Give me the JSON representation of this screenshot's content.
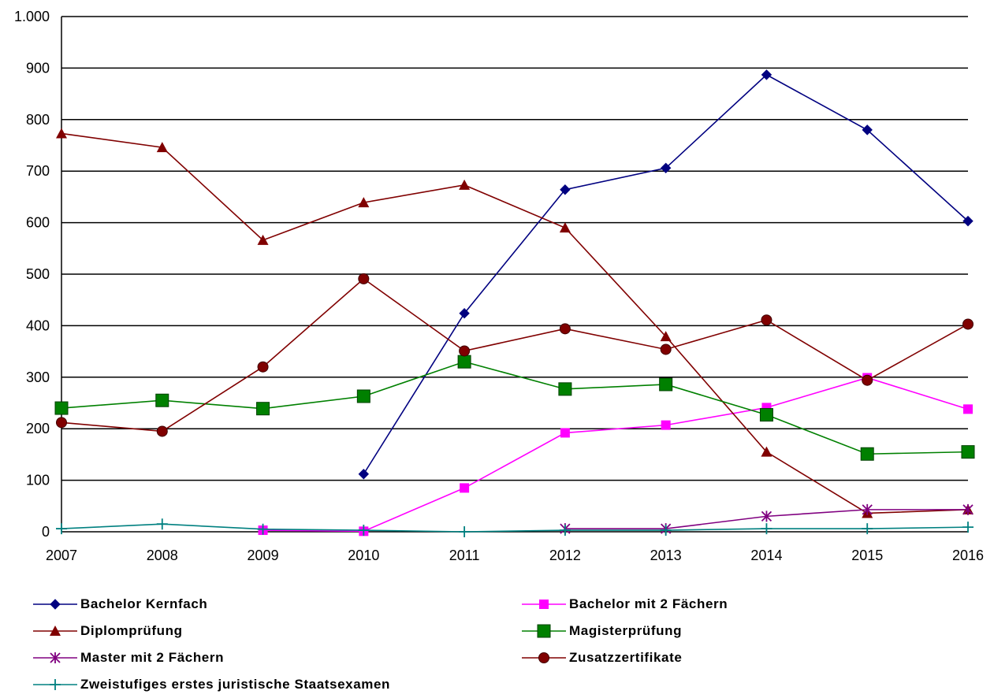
{
  "chart_data": {
    "type": "line",
    "title": "",
    "xlabel": "",
    "ylabel": "",
    "categories": [
      "2007",
      "2008",
      "2009",
      "2010",
      "2011",
      "2012",
      "2013",
      "2014",
      "2015",
      "2016"
    ],
    "ylim": [
      0,
      1000
    ],
    "yticks": [
      0,
      100,
      200,
      300,
      400,
      500,
      600,
      700,
      800,
      900,
      1000
    ],
    "ytick_labels": [
      "0",
      "100",
      "200",
      "300",
      "400",
      "500",
      "600",
      "700",
      "800",
      "900",
      "1.000"
    ],
    "grid": "horizontal",
    "legend_position": "bottom",
    "series": [
      {
        "name": "Bachelor Kernfach",
        "color": "#000080",
        "marker": "diamond",
        "values": [
          null,
          null,
          null,
          112,
          424,
          664,
          706,
          887,
          780,
          603
        ]
      },
      {
        "name": "Bachelor mit 2 Fächern",
        "color": "#ff00ff",
        "marker": "square",
        "values": [
          null,
          null,
          3,
          1,
          85,
          192,
          207,
          241,
          299,
          238
        ]
      },
      {
        "name": "Diplomprüfung",
        "color": "#800000",
        "marker": "triangle",
        "values": [
          773,
          746,
          566,
          639,
          673,
          590,
          379,
          155,
          36,
          43
        ]
      },
      {
        "name": "Magisterprüfung",
        "color": "#008000",
        "marker": "bigsquare",
        "values": [
          240,
          255,
          239,
          263,
          330,
          277,
          286,
          227,
          151,
          155
        ]
      },
      {
        "name": "Master mit 2 Fächern",
        "color": "#800080",
        "marker": "star",
        "values": [
          null,
          null,
          null,
          null,
          null,
          6,
          6,
          30,
          43,
          43
        ]
      },
      {
        "name": "Zusatzzertifikate",
        "color": "#800000",
        "marker": "circle",
        "values": [
          212,
          195,
          320,
          491,
          351,
          394,
          354,
          411,
          294,
          403
        ]
      },
      {
        "name": "Zweistufiges erstes juristische Staatsexamen",
        "color": "#008080",
        "marker": "plus",
        "values": [
          6,
          15,
          5,
          3,
          0,
          3,
          3,
          6,
          6,
          9
        ]
      }
    ]
  }
}
